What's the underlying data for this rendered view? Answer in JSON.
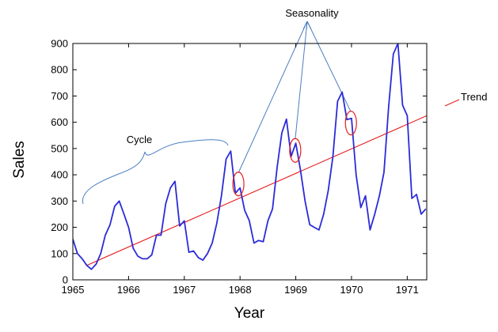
{
  "chart_data": {
    "type": "line",
    "title": "",
    "xlabel": "Year",
    "ylabel": "Sales",
    "xlim": [
      1965.0,
      1971.35
    ],
    "ylim": [
      0,
      900
    ],
    "xticks": [
      "1965",
      "1966",
      "1967",
      "1968",
      "1969",
      "1970",
      "1971"
    ],
    "yticks": [
      "0",
      "100",
      "200",
      "300",
      "400",
      "500",
      "600",
      "700",
      "800",
      "900"
    ],
    "grid": false,
    "series": [
      {
        "role": "sales",
        "color": "#2b2bd9",
        "x": [
          1965.0,
          1965.083,
          1965.167,
          1965.25,
          1965.333,
          1965.417,
          1965.5,
          1965.583,
          1965.667,
          1965.75,
          1965.833,
          1965.917,
          1966.0,
          1966.083,
          1966.167,
          1966.25,
          1966.333,
          1966.417,
          1966.5,
          1966.583,
          1966.667,
          1966.75,
          1966.833,
          1966.917,
          1967.0,
          1967.083,
          1967.167,
          1967.25,
          1967.333,
          1967.417,
          1967.5,
          1967.583,
          1967.667,
          1967.75,
          1967.833,
          1967.917,
          1968.0,
          1968.083,
          1968.167,
          1968.25,
          1968.333,
          1968.417,
          1968.5,
          1968.583,
          1968.667,
          1968.75,
          1968.833,
          1968.917,
          1969.0,
          1969.083,
          1969.167,
          1969.25,
          1969.333,
          1969.417,
          1969.5,
          1969.583,
          1969.667,
          1969.75,
          1969.833,
          1969.917,
          1970.0,
          1970.083,
          1970.167,
          1970.25,
          1970.333,
          1970.417,
          1970.5,
          1970.583,
          1970.667,
          1970.75,
          1970.833,
          1970.917,
          1971.0,
          1971.083,
          1971.167,
          1971.25,
          1971.333
        ],
        "y": [
          155,
          100,
          80,
          55,
          40,
          60,
          100,
          170,
          210,
          280,
          300,
          250,
          200,
          120,
          90,
          80,
          80,
          95,
          170,
          170,
          290,
          350,
          375,
          205,
          225,
          105,
          110,
          85,
          75,
          100,
          140,
          215,
          320,
          460,
          490,
          330,
          350,
          265,
          225,
          140,
          150,
          145,
          225,
          270,
          430,
          560,
          612,
          470,
          520,
          420,
          300,
          210,
          200,
          190,
          250,
          340,
          470,
          680,
          715,
          610,
          615,
          400,
          275,
          320,
          190,
          250,
          320,
          410,
          660,
          860,
          900,
          665,
          625,
          310,
          325,
          250,
          270
        ]
      },
      {
        "role": "trend",
        "color": "#e81c1c",
        "x": [
          1965.25,
          1971.35
        ],
        "y": [
          55,
          625
        ]
      }
    ],
    "annotations": [
      {
        "name": "seasonality",
        "text": "Seasonality"
      },
      {
        "name": "trend",
        "text": "Trend"
      },
      {
        "name": "cycle",
        "text": "Cycle"
      }
    ],
    "seasonality_markers": [
      {
        "x": 1967.97,
        "y": 365
      },
      {
        "x": 1968.99,
        "y": 493
      },
      {
        "x": 1969.99,
        "y": 597
      }
    ],
    "annotation_line_color": "#4a7fc0",
    "marker_color": "#e81c1c"
  }
}
